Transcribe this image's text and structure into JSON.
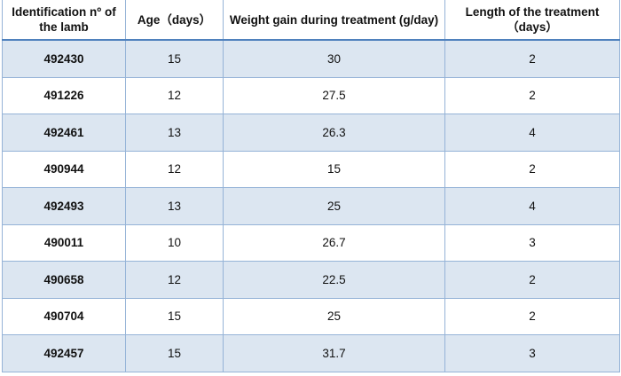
{
  "table": {
    "header": [
      "Identification nº of the lamb",
      "Age（days）",
      "Weight gain during treatment (g/day)",
      "Length of the treatment（days）"
    ],
    "rows": [
      [
        "492430",
        15,
        30,
        2
      ],
      [
        "491226",
        12,
        27.5,
        2
      ],
      [
        "492461",
        13,
        26.3,
        4
      ],
      [
        "490944",
        12,
        15,
        2
      ],
      [
        "492493",
        13,
        25,
        4
      ],
      [
        "490011",
        10,
        26.7,
        3
      ],
      [
        "490658",
        12,
        22.5,
        2
      ],
      [
        "490704",
        15,
        25,
        2
      ],
      [
        "492457",
        15,
        31.7,
        3
      ]
    ]
  }
}
